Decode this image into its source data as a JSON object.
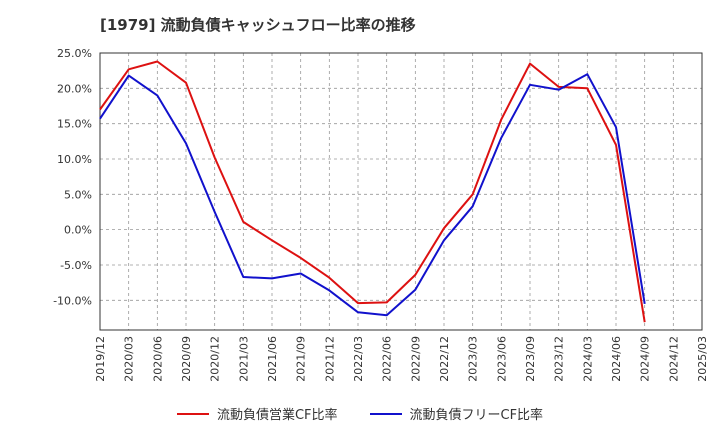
{
  "title": "[1979]  流動負債キャッシュフロー比率の推移",
  "colors": {
    "series1": "#dd1111",
    "series2": "#1111cc",
    "grid": "#999999",
    "axis": "#333333"
  },
  "chart_data": {
    "type": "line",
    "title": "[1979]  流動負債キャッシュフロー比率の推移",
    "ylim": [
      -14.2,
      25.0
    ],
    "y_ticks": [
      25.0,
      20.0,
      15.0,
      10.0,
      5.0,
      0.0,
      -5.0,
      -10.0
    ],
    "y_tick_labels": [
      "25.0%",
      "20.0%",
      "15.0%",
      "10.0%",
      "5.0%",
      "0.0%",
      "-5.0%",
      "-10.0%"
    ],
    "x_tick_labels": [
      "2019/12",
      "2020/03",
      "2020/06",
      "2020/09",
      "2020/12",
      "2021/03",
      "2021/06",
      "2021/09",
      "2021/12",
      "2022/03",
      "2022/06",
      "2022/09",
      "2022/12",
      "2023/03",
      "2023/06",
      "2023/09",
      "2023/12",
      "2024/03",
      "2024/06",
      "2024/09",
      "2024/12",
      "2025/03"
    ],
    "grid": true,
    "legend_position": "bottom",
    "series": [
      {
        "name": "流動負債営業CF比率",
        "color": "#dd1111",
        "x": [
          "2019/12",
          "2020/03",
          "2020/06",
          "2020/09",
          "2020/12",
          "2021/03",
          "2021/06",
          "2021/09",
          "2021/12",
          "2022/03",
          "2022/06",
          "2022/09",
          "2022/12",
          "2023/03",
          "2023/06",
          "2023/09",
          "2023/12",
          "2024/03",
          "2024/06",
          "2024/09"
        ],
        "values": [
          17.0,
          22.7,
          23.8,
          20.8,
          10.2,
          1.1,
          -1.5,
          -4.0,
          -6.8,
          -10.4,
          -10.3,
          -6.4,
          0.2,
          5.0,
          15.6,
          23.5,
          20.2,
          20.0,
          12.0,
          -13.1
        ]
      },
      {
        "name": "流動負債フリーCF比率",
        "color": "#1111cc",
        "x": [
          "2019/12",
          "2020/03",
          "2020/06",
          "2020/09",
          "2020/12",
          "2021/03",
          "2021/06",
          "2021/09",
          "2021/12",
          "2022/03",
          "2022/06",
          "2022/09",
          "2022/12",
          "2023/03",
          "2023/06",
          "2023/09",
          "2023/12",
          "2024/03",
          "2024/06",
          "2024/09"
        ],
        "values": [
          15.7,
          21.8,
          19.0,
          12.2,
          2.5,
          -6.7,
          -6.9,
          -6.2,
          -8.6,
          -11.7,
          -12.1,
          -8.5,
          -1.5,
          3.3,
          13.0,
          20.5,
          19.8,
          22.0,
          14.5,
          -10.5
        ]
      }
    ]
  }
}
